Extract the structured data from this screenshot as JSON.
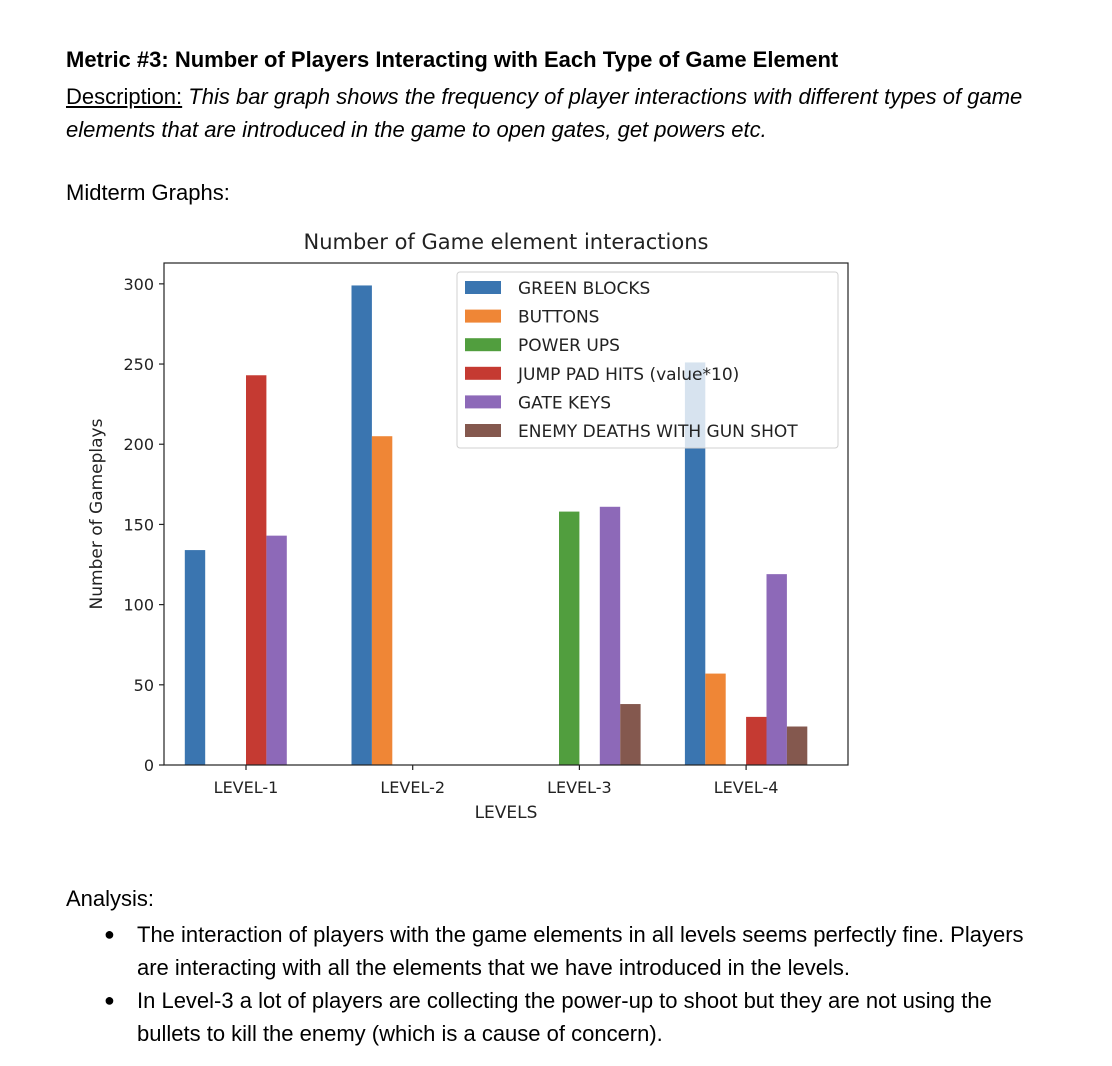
{
  "heading": "Metric #3: Number of Players Interacting with Each Type of Game Element",
  "description": {
    "label": "Description:",
    "text": "This bar graph shows the frequency of player interactions with different types of game elements that are introduced in the game to open gates, get powers etc."
  },
  "section_label": "Midterm Graphs:",
  "chart_data": {
    "type": "bar",
    "title": "Number of Game element interactions",
    "xlabel": "LEVELS",
    "ylabel": "Number of Gameplays",
    "categories": [
      "LEVEL-1",
      "LEVEL-2",
      "LEVEL-3",
      "LEVEL-4"
    ],
    "ylim": [
      0,
      313
    ],
    "yticks": [
      0,
      50,
      100,
      150,
      200,
      250,
      300
    ],
    "grid": false,
    "legend_position": "top-right",
    "series": [
      {
        "name": "GREEN BLOCKS",
        "color": "#3a75b0",
        "values": [
          134,
          299,
          0,
          251
        ]
      },
      {
        "name": "BUTTONS",
        "color": "#ef8636",
        "values": [
          0,
          205,
          0,
          57
        ]
      },
      {
        "name": "POWER UPS",
        "color": "#519e3e",
        "values": [
          0,
          0,
          158,
          0
        ]
      },
      {
        "name": "JUMP PAD HITS (value*10)",
        "color": "#c53a32",
        "values": [
          243,
          0,
          0,
          30
        ]
      },
      {
        "name": "GATE KEYS",
        "color": "#8d69b8",
        "values": [
          143,
          0,
          161,
          119
        ]
      },
      {
        "name": "ENEMY DEATHS WITH GUN SHOT",
        "color": "#84584e",
        "values": [
          0,
          0,
          38,
          24
        ]
      }
    ]
  },
  "analysis": {
    "title": "Analysis:",
    "bullet_glyph": "●",
    "items": [
      "The interaction of players with the game elements in all levels seems perfectly fine. Players are interacting with all the elements that we have introduced in the levels.",
      "In Level-3 a lot of players are collecting the power-up to shoot but they are not using the bullets to kill the enemy (which is a cause of concern)."
    ]
  }
}
